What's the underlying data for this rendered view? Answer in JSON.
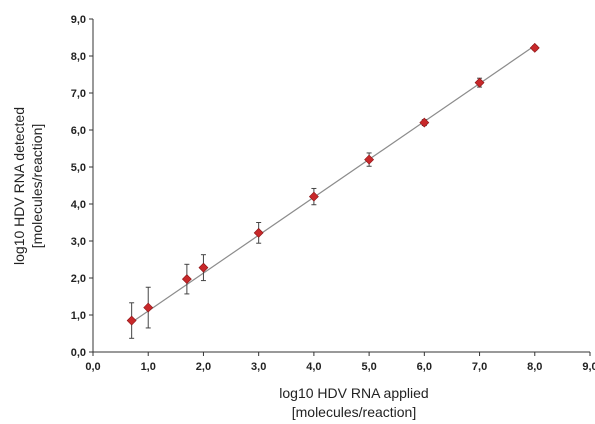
{
  "chart_data": {
    "type": "scatter",
    "title": "",
    "xlabel": "log10 HDV RNA applied",
    "xlabel_unit": "[molecules/reaction]",
    "ylabel": "log10 HDV RNA detected",
    "ylabel_unit": "[molecules/reaction]",
    "xlim": [
      0,
      9
    ],
    "ylim": [
      0,
      9
    ],
    "x_ticks": [
      "0,0",
      "1,0",
      "2,0",
      "3,0",
      "4,0",
      "5,0",
      "6,0",
      "7,0",
      "8,0",
      "9,0"
    ],
    "y_ticks": [
      "0,0",
      "1,0",
      "2,0",
      "3,0",
      "4,0",
      "5,0",
      "6,0",
      "7,0",
      "8,0",
      "9,0"
    ],
    "grid": false,
    "legend": "none",
    "point_color": "#c8282a",
    "line_color": "#8c8c8c",
    "series": [
      {
        "x": [
          0.7,
          1.0,
          1.7,
          2.0,
          3.0,
          4.0,
          5.0,
          6.0,
          7.0,
          8.0
        ],
        "y": [
          0.85,
          1.2,
          1.97,
          2.28,
          3.22,
          4.2,
          5.2,
          6.2,
          7.28,
          8.22
        ],
        "yerr": [
          0.48,
          0.55,
          0.4,
          0.35,
          0.28,
          0.22,
          0.18,
          0.08,
          0.12,
          0.06
        ]
      }
    ],
    "fit_line": {
      "x": [
        0.7,
        8.0
      ],
      "y": [
        0.8,
        8.28
      ]
    }
  }
}
